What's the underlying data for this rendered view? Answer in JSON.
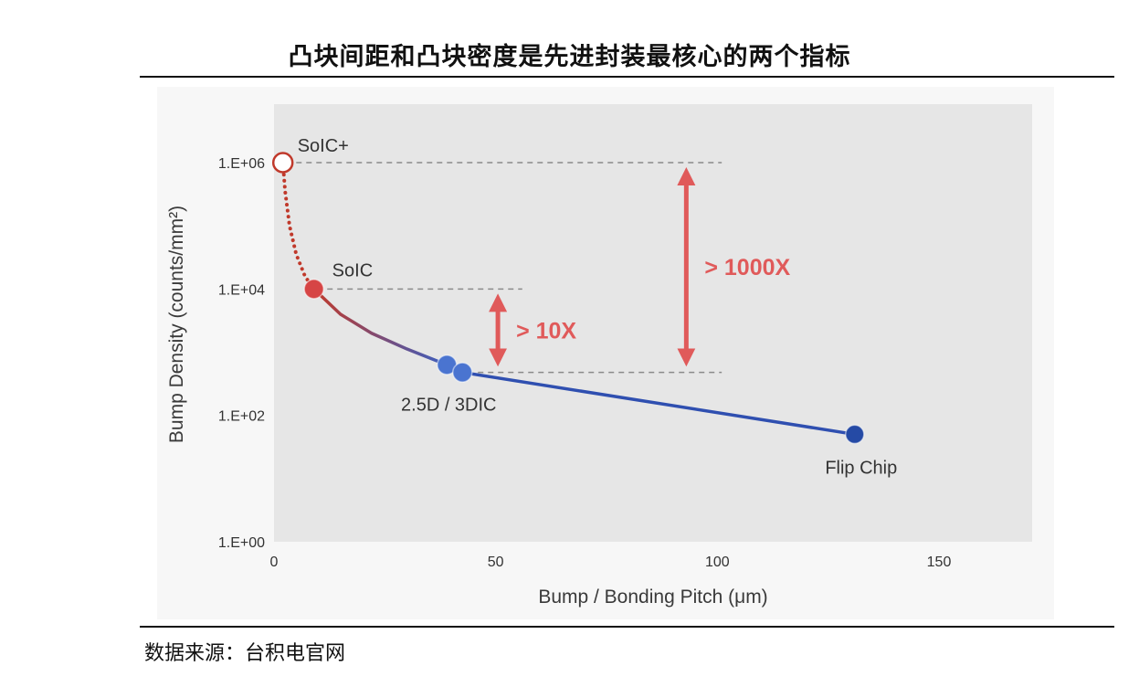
{
  "page": {
    "title": "凸块间距和凸块密度是先进封装最核心的两个指标",
    "source": "数据来源：台积电官网"
  },
  "chart_data": {
    "type": "line",
    "xlabel": "Bump / Bonding Pitch (μm)",
    "ylabel": "Bump Density (counts/mm²)",
    "y_scale": "log10",
    "xlim": [
      0,
      175
    ],
    "ylim_log10": [
      0,
      6.95
    ],
    "x_ticks": [
      {
        "value": 0,
        "label": "0"
      },
      {
        "value": 50,
        "label": "50"
      },
      {
        "value": 100,
        "label": "100"
      },
      {
        "value": 150,
        "label": "150"
      }
    ],
    "y_ticks": [
      {
        "value": 0,
        "label": "1.E+00"
      },
      {
        "value": 2,
        "label": "1.E+02"
      },
      {
        "value": 4,
        "label": "1.E+04"
      },
      {
        "value": 6,
        "label": "1.E+06"
      }
    ],
    "points": [
      {
        "name": "SoIC+",
        "label": "SoIC+",
        "x": 2,
        "log_y": 6.0,
        "marker": "hollow",
        "color": "#c0392b"
      },
      {
        "name": "SoIC",
        "label": "SoIC",
        "x": 9,
        "log_y": 4.0,
        "marker": "filled",
        "color": "#d64545"
      },
      {
        "name": "2.5D-a",
        "label": "",
        "x": 39,
        "log_y": 2.8,
        "marker": "filled",
        "color": "#4a74d0"
      },
      {
        "name": "2.5D / 3DIC",
        "label": "2.5D / 3DIC",
        "x": 42.5,
        "log_y": 2.68,
        "marker": "filled",
        "color": "#4a74d0"
      },
      {
        "name": "Flip Chip",
        "label": "Flip Chip",
        "x": 131,
        "log_y": 1.7,
        "marker": "filled",
        "color": "#254aa5"
      }
    ],
    "series": [
      {
        "name": "SoIC+ to SoIC (projected)",
        "style": "dotted",
        "color": "#c0392b",
        "x": [
          2,
          2.5,
          3.5,
          5,
          7,
          9
        ],
        "log_y": [
          6.0,
          5.55,
          5.0,
          4.55,
          4.2,
          4.0
        ]
      },
      {
        "name": "SoIC to 2.5D/3DIC",
        "style": "solid-gradient",
        "color_start": "#c0392b",
        "color_end": "#3b5fc0",
        "x": [
          9,
          15,
          22,
          30,
          39
        ],
        "log_y": [
          4.0,
          3.6,
          3.3,
          3.05,
          2.8
        ]
      },
      {
        "name": "2.5D/3DIC to Flip Chip",
        "style": "solid",
        "color": "#2f4fb0",
        "x": [
          39,
          42.5,
          131
        ],
        "log_y": [
          2.8,
          2.68,
          1.7
        ]
      }
    ],
    "reference_lines": [
      {
        "log_y": 6.0,
        "x_from": 5,
        "x_to": 101
      },
      {
        "log_y": 4.0,
        "x_from": 12,
        "x_to": 56
      },
      {
        "log_y": 2.68,
        "x_from": 46,
        "x_to": 101
      }
    ],
    "annotations": [
      {
        "text": "> 10X",
        "x": 50.5,
        "log_y_from": 2.7,
        "log_y_to": 4.0,
        "color": "#e05a5a"
      },
      {
        "text": "> 1000X",
        "x": 93,
        "log_y_from": 2.7,
        "log_y_to": 6.0,
        "color": "#e05a5a"
      }
    ]
  }
}
